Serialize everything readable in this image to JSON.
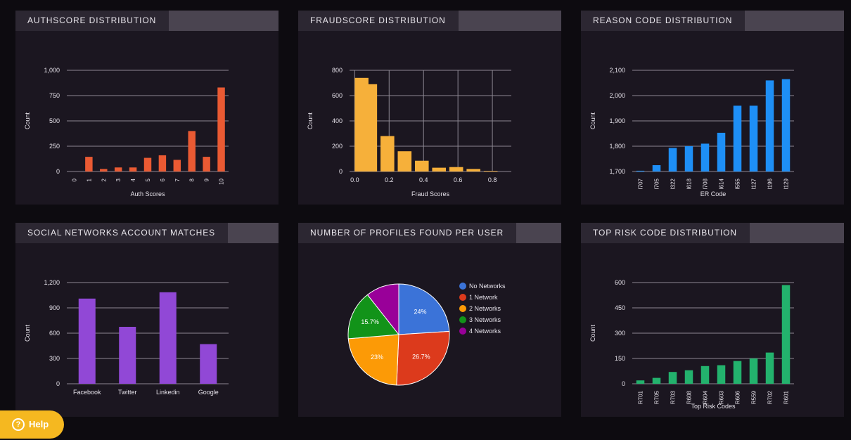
{
  "help": {
    "label": "Help",
    "icon": "question-icon"
  },
  "charts": [
    {
      "type": "bar",
      "title": "AUTHSCORE DISTRIBUTION",
      "xlabel": "Auth Scores",
      "ylabel": "Count",
      "categories": [
        "0",
        "1",
        "2",
        "3",
        "4",
        "5",
        "6",
        "7",
        "8",
        "9",
        "10"
      ],
      "values": [
        0,
        145,
        25,
        40,
        40,
        135,
        160,
        115,
        400,
        145,
        830
      ],
      "ylim": [
        0,
        1000
      ],
      "yticks": [
        0,
        250,
        500,
        750,
        1000
      ],
      "ytick_labels": [
        "0",
        "250",
        "500",
        "750",
        "1,000"
      ],
      "rotate_x": true,
      "color": "#ea5a33"
    },
    {
      "type": "bar",
      "title": "FRAUDSCORE DISTRIBUTION",
      "xlabel": "Fraud Scores",
      "ylabel": "Count",
      "histogram": true,
      "bin_starts": [
        0,
        0.05,
        0.15,
        0.25,
        0.35,
        0.45,
        0.55,
        0.65,
        0.75
      ],
      "bin_width": 0.08,
      "values": [
        740,
        690,
        280,
        160,
        85,
        30,
        35,
        20,
        5
      ],
      "xlim": [
        -0.03,
        0.91
      ],
      "xticks": [
        0,
        0.2,
        0.4,
        0.6,
        0.8
      ],
      "xtick_labels": [
        "0.0",
        "0.2",
        "0.4",
        "0.6",
        "0.8"
      ],
      "ylim": [
        0,
        800
      ],
      "yticks": [
        0,
        200,
        400,
        600,
        800
      ],
      "ytick_labels": [
        "0",
        "200",
        "400",
        "600",
        "800"
      ],
      "vertical_grid": [
        0,
        0.2,
        0.4,
        0.6,
        0.8
      ],
      "color": "#f6b03a"
    },
    {
      "type": "bar",
      "title": "REASON CODE DISTRIBUTION",
      "xlabel": "ER Code",
      "ylabel": "Count",
      "categories": [
        "I707",
        "I705",
        "I322",
        "I618",
        "I708",
        "I614",
        "I555",
        "I127",
        "I196",
        "I129"
      ],
      "values": [
        1703,
        1725,
        1793,
        1800,
        1810,
        1853,
        1960,
        1960,
        2060,
        2065
      ],
      "ylim": [
        1700,
        2100
      ],
      "yticks": [
        1700,
        1800,
        1900,
        2000,
        2100
      ],
      "ytick_labels": [
        "1,700",
        "1,800",
        "1,900",
        "2,000",
        "2,100"
      ],
      "rotate_x": true,
      "color": "#1e8ff6"
    },
    {
      "type": "bar",
      "title": "SOCIAL NETWORKS ACCOUNT MATCHES",
      "xlabel": "",
      "ylabel": "Count",
      "categories": [
        "Facebook",
        "Twitter",
        "Linkedin",
        "Google"
      ],
      "values": [
        1010,
        675,
        1085,
        470
      ],
      "ylim": [
        0,
        1200
      ],
      "yticks": [
        0,
        300,
        600,
        900,
        1200
      ],
      "ytick_labels": [
        "0",
        "300",
        "600",
        "900",
        "1,200"
      ],
      "rotate_x": false,
      "color": "#9148d6"
    },
    {
      "type": "pie",
      "title": "NUMBER OF PROFILES FOUND PER USER",
      "labels": [
        "No Networks",
        "1 Network",
        "2 Networks",
        "3 Networks",
        "4 Networks"
      ],
      "values": [
        24,
        26.7,
        23,
        15.7,
        10.6
      ],
      "value_labels": [
        "24%",
        "26.7%",
        "23%",
        "15.7%",
        ""
      ],
      "colors": [
        "#3b73d8",
        "#dc3a1c",
        "#fc9a06",
        "#129319",
        "#990099"
      ]
    },
    {
      "type": "bar",
      "title": "TOP RISK CODE DISTRIBUTION",
      "xlabel": "Top Risk Codes",
      "ylabel": "Count",
      "categories": [
        "R701",
        "R705",
        "R703",
        "R608",
        "R604",
        "R603",
        "R606",
        "R559",
        "R702",
        "R601"
      ],
      "values": [
        20,
        35,
        70,
        80,
        105,
        110,
        135,
        150,
        185,
        585
      ],
      "ylim": [
        0,
        600
      ],
      "yticks": [
        0,
        150,
        300,
        450,
        600
      ],
      "ytick_labels": [
        "0",
        "150",
        "300",
        "450",
        "600"
      ],
      "rotate_x": true,
      "color": "#23b26d"
    }
  ]
}
